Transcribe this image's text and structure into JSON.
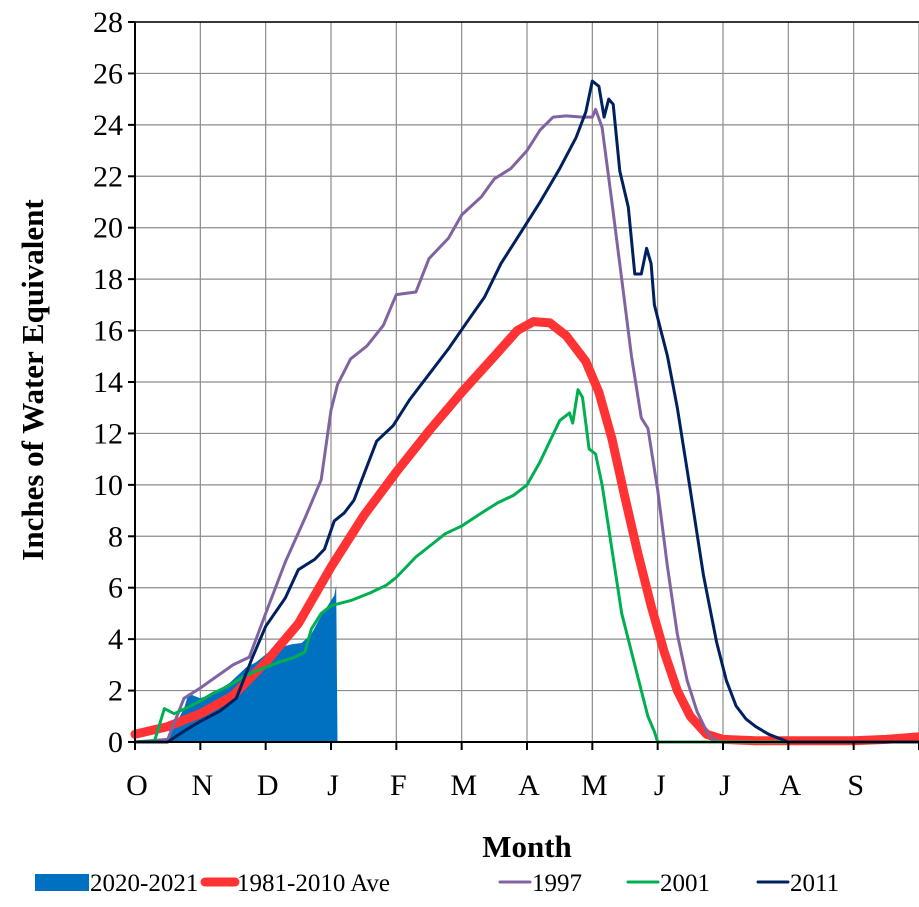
{
  "chart_data": {
    "type": "area",
    "title": "",
    "xlabel": "Month",
    "ylabel": "Inches of Water Equivalent",
    "x_categories": [
      "O",
      "N",
      "D",
      "J",
      "F",
      "M",
      "A",
      "M",
      "J",
      "J",
      "A",
      "S"
    ],
    "xlim_months": [
      0,
      12
    ],
    "ylim": [
      0,
      28
    ],
    "y_ticks": [
      "0",
      "2",
      "4",
      "6",
      "8",
      "10",
      "12",
      "14",
      "16",
      "18",
      "20",
      "22",
      "24",
      "26",
      "28"
    ],
    "grid": true,
    "legend_position": "bottom",
    "series": [
      {
        "name": "2020-2021",
        "style": "area",
        "color": "#0070C0",
        "points": [
          [
            0,
            0
          ],
          [
            0.5,
            0
          ],
          [
            0.6,
            0.6
          ],
          [
            0.75,
            1.3
          ],
          [
            0.82,
            1.9
          ],
          [
            0.9,
            1.8
          ],
          [
            1.0,
            1.7
          ],
          [
            1.2,
            1.9
          ],
          [
            1.45,
            2.3
          ],
          [
            1.7,
            2.9
          ],
          [
            1.85,
            3.1
          ],
          [
            1.95,
            3.3
          ],
          [
            2.1,
            3.6
          ],
          [
            2.25,
            3.7
          ],
          [
            2.4,
            3.8
          ],
          [
            2.55,
            3.85
          ],
          [
            2.7,
            4.2
          ],
          [
            2.85,
            4.9
          ],
          [
            3.0,
            5.5
          ],
          [
            3.05,
            5.7
          ],
          [
            3.08,
            6.1
          ],
          [
            3.1,
            0
          ]
        ]
      },
      {
        "name": "1981-2010 Ave",
        "style": "line",
        "color": "#FF3333",
        "width": 9,
        "points": [
          [
            0,
            0.3
          ],
          [
            0.5,
            0.6
          ],
          [
            1.0,
            1.1
          ],
          [
            1.5,
            1.8
          ],
          [
            2.0,
            3.1
          ],
          [
            2.5,
            4.6
          ],
          [
            3.0,
            6.8
          ],
          [
            3.5,
            8.8
          ],
          [
            4.0,
            10.5
          ],
          [
            4.5,
            12.1
          ],
          [
            5.0,
            13.6
          ],
          [
            5.5,
            15.0
          ],
          [
            5.85,
            16.0
          ],
          [
            6.1,
            16.35
          ],
          [
            6.35,
            16.3
          ],
          [
            6.6,
            15.8
          ],
          [
            6.9,
            14.8
          ],
          [
            7.1,
            13.6
          ],
          [
            7.3,
            11.8
          ],
          [
            7.5,
            9.5
          ],
          [
            7.7,
            7.3
          ],
          [
            7.9,
            5.3
          ],
          [
            8.1,
            3.5
          ],
          [
            8.3,
            2.0
          ],
          [
            8.5,
            1.0
          ],
          [
            8.75,
            0.3
          ],
          [
            9.0,
            0.1
          ],
          [
            9.5,
            0.05
          ],
          [
            10.0,
            0.05
          ],
          [
            10.5,
            0.05
          ],
          [
            11.0,
            0.05
          ],
          [
            11.5,
            0.1
          ],
          [
            12.0,
            0.2
          ]
        ]
      },
      {
        "name": "1997",
        "style": "line",
        "color": "#8064A2",
        "width": 3,
        "points": [
          [
            0,
            0
          ],
          [
            0.5,
            0.1
          ],
          [
            0.75,
            1.7
          ],
          [
            1.0,
            2.1
          ],
          [
            1.5,
            3.0
          ],
          [
            1.75,
            3.3
          ],
          [
            2.0,
            5.0
          ],
          [
            2.3,
            7.0
          ],
          [
            2.6,
            8.7
          ],
          [
            2.85,
            10.2
          ],
          [
            3.0,
            12.9
          ],
          [
            3.1,
            13.9
          ],
          [
            3.3,
            14.9
          ],
          [
            3.55,
            15.4
          ],
          [
            3.8,
            16.2
          ],
          [
            4.0,
            17.4
          ],
          [
            4.3,
            17.5
          ],
          [
            4.5,
            18.8
          ],
          [
            4.8,
            19.6
          ],
          [
            5.0,
            20.5
          ],
          [
            5.3,
            21.2
          ],
          [
            5.5,
            21.9
          ],
          [
            5.75,
            22.3
          ],
          [
            6.0,
            23.0
          ],
          [
            6.2,
            23.8
          ],
          [
            6.4,
            24.3
          ],
          [
            6.6,
            24.35
          ],
          [
            6.85,
            24.3
          ],
          [
            7.0,
            24.3
          ],
          [
            7.05,
            24.6
          ],
          [
            7.15,
            23.9
          ],
          [
            7.3,
            21.0
          ],
          [
            7.45,
            18.0
          ],
          [
            7.6,
            15.0
          ],
          [
            7.75,
            12.6
          ],
          [
            7.85,
            12.2
          ],
          [
            8.0,
            9.8
          ],
          [
            8.15,
            6.8
          ],
          [
            8.3,
            4.2
          ],
          [
            8.45,
            2.4
          ],
          [
            8.6,
            1.2
          ],
          [
            8.75,
            0.4
          ],
          [
            8.85,
            0.1
          ],
          [
            9.0,
            0
          ],
          [
            12.0,
            0
          ]
        ]
      },
      {
        "name": "2001",
        "style": "line",
        "color": "#00B050",
        "width": 3,
        "points": [
          [
            0,
            0
          ],
          [
            0.3,
            0.05
          ],
          [
            0.45,
            1.3
          ],
          [
            0.6,
            1.1
          ],
          [
            0.85,
            1.4
          ],
          [
            1.0,
            1.6
          ],
          [
            1.2,
            1.9
          ],
          [
            1.45,
            2.2
          ],
          [
            1.7,
            2.6
          ],
          [
            2.0,
            2.9
          ],
          [
            2.2,
            3.1
          ],
          [
            2.45,
            3.3
          ],
          [
            2.6,
            3.5
          ],
          [
            2.7,
            4.4
          ],
          [
            2.85,
            5.0
          ],
          [
            3.0,
            5.3
          ],
          [
            3.3,
            5.5
          ],
          [
            3.6,
            5.8
          ],
          [
            3.85,
            6.1
          ],
          [
            4.0,
            6.4
          ],
          [
            4.3,
            7.2
          ],
          [
            4.55,
            7.7
          ],
          [
            4.75,
            8.1
          ],
          [
            5.0,
            8.4
          ],
          [
            5.3,
            8.9
          ],
          [
            5.55,
            9.3
          ],
          [
            5.8,
            9.6
          ],
          [
            6.0,
            10.0
          ],
          [
            6.2,
            10.9
          ],
          [
            6.35,
            11.7
          ],
          [
            6.5,
            12.5
          ],
          [
            6.65,
            12.8
          ],
          [
            6.7,
            12.4
          ],
          [
            6.78,
            13.7
          ],
          [
            6.85,
            13.4
          ],
          [
            6.95,
            11.4
          ],
          [
            7.05,
            11.2
          ],
          [
            7.15,
            10.0
          ],
          [
            7.3,
            7.5
          ],
          [
            7.45,
            5.0
          ],
          [
            7.6,
            3.5
          ],
          [
            7.75,
            2.0
          ],
          [
            7.85,
            1.0
          ],
          [
            7.95,
            0.4
          ],
          [
            8.0,
            0
          ],
          [
            12.0,
            0
          ]
        ]
      },
      {
        "name": "2011",
        "style": "line",
        "color": "#002060",
        "width": 3,
        "points": [
          [
            0,
            0
          ],
          [
            0.5,
            0
          ],
          [
            0.8,
            0.5
          ],
          [
            1.0,
            0.8
          ],
          [
            1.3,
            1.2
          ],
          [
            1.55,
            1.7
          ],
          [
            1.8,
            3.3
          ],
          [
            2.0,
            4.5
          ],
          [
            2.3,
            5.6
          ],
          [
            2.5,
            6.7
          ],
          [
            2.75,
            7.1
          ],
          [
            2.9,
            7.5
          ],
          [
            3.05,
            8.6
          ],
          [
            3.2,
            8.9
          ],
          [
            3.35,
            9.4
          ],
          [
            3.7,
            11.7
          ],
          [
            3.95,
            12.3
          ],
          [
            4.2,
            13.3
          ],
          [
            4.5,
            14.3
          ],
          [
            4.8,
            15.3
          ],
          [
            5.1,
            16.4
          ],
          [
            5.35,
            17.3
          ],
          [
            5.6,
            18.6
          ],
          [
            5.9,
            19.8
          ],
          [
            6.2,
            21.0
          ],
          [
            6.5,
            22.3
          ],
          [
            6.75,
            23.5
          ],
          [
            6.9,
            24.5
          ],
          [
            7.0,
            25.7
          ],
          [
            7.1,
            25.5
          ],
          [
            7.18,
            24.3
          ],
          [
            7.25,
            25.0
          ],
          [
            7.32,
            24.8
          ],
          [
            7.42,
            22.2
          ],
          [
            7.55,
            20.8
          ],
          [
            7.65,
            18.2
          ],
          [
            7.75,
            18.2
          ],
          [
            7.83,
            19.2
          ],
          [
            7.9,
            18.6
          ],
          [
            7.95,
            17.0
          ],
          [
            8.05,
            16.0
          ],
          [
            8.15,
            15.0
          ],
          [
            8.3,
            13.0
          ],
          [
            8.5,
            9.8
          ],
          [
            8.7,
            6.5
          ],
          [
            8.9,
            3.9
          ],
          [
            9.05,
            2.4
          ],
          [
            9.2,
            1.4
          ],
          [
            9.35,
            0.9
          ],
          [
            9.5,
            0.6
          ],
          [
            9.7,
            0.3
          ],
          [
            9.9,
            0.1
          ],
          [
            10.0,
            0
          ],
          [
            12.0,
            0
          ]
        ]
      }
    ]
  }
}
